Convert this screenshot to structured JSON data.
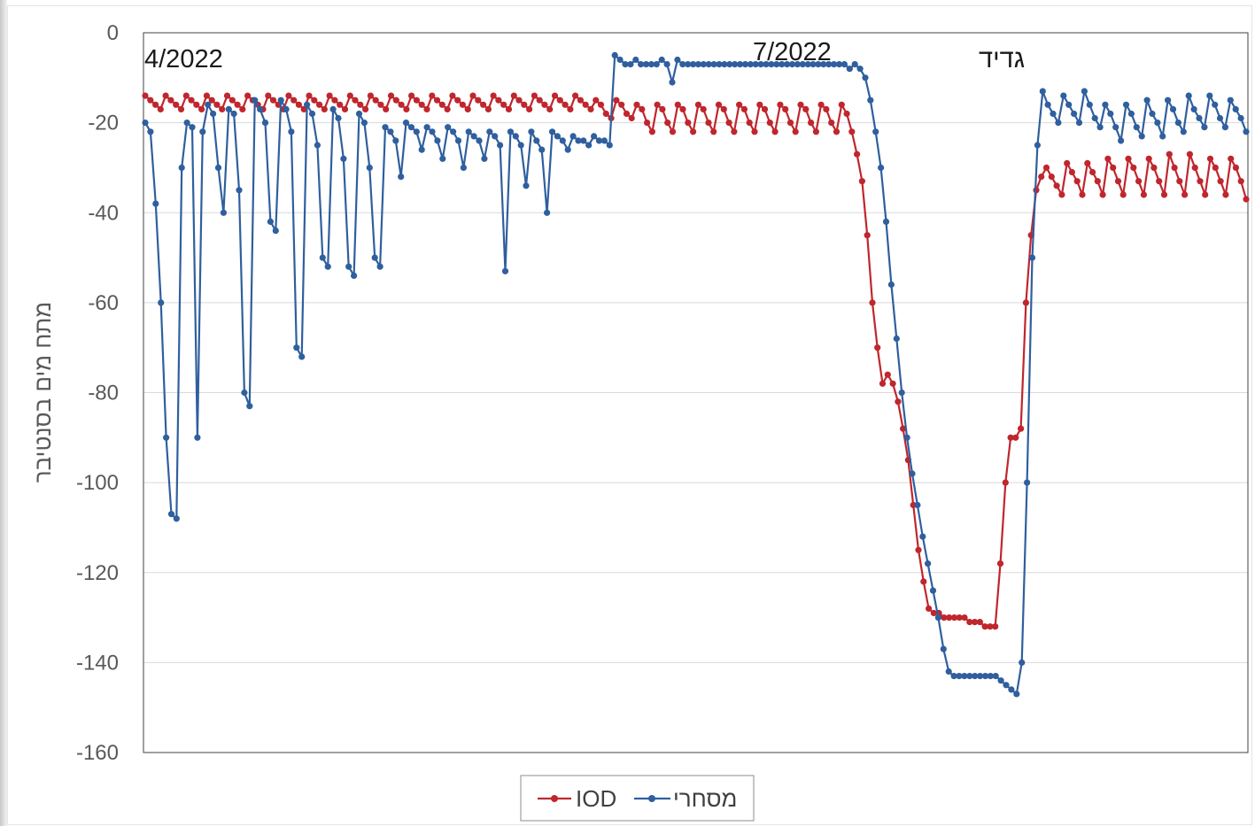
{
  "chart_data": {
    "type": "line",
    "title": "",
    "xlabel": "",
    "ylabel": "מתח מים בסנטיבר",
    "ylim": [
      -160,
      0
    ],
    "yticks": [
      0,
      -20,
      -40,
      -60,
      -80,
      -100,
      -120,
      -140,
      -160
    ],
    "grid": true,
    "legend_position": "bottom-center",
    "annotations": [
      "4/2022",
      "7/2022",
      "גדיד"
    ],
    "x_description": "measurement index (no x tick labels shown)",
    "series": [
      {
        "name": "IOD",
        "color": "#c0262d",
        "values": [
          -14,
          -15,
          -16,
          -17,
          -14,
          -15,
          -16,
          -17,
          -14,
          -15,
          -16,
          -17,
          -14,
          -15,
          -16,
          -17,
          -14,
          -15,
          -16,
          -17,
          -14,
          -15,
          -16,
          -17,
          -14,
          -15,
          -16,
          -17,
          -14,
          -15,
          -16,
          -17,
          -14,
          -15,
          -16,
          -17,
          -14,
          -15,
          -16,
          -17,
          -14,
          -15,
          -16,
          -17,
          -14,
          -15,
          -16,
          -17,
          -14,
          -15,
          -16,
          -17,
          -14,
          -15,
          -16,
          -17,
          -14,
          -15,
          -16,
          -17,
          -14,
          -15,
          -16,
          -17,
          -14,
          -15,
          -16,
          -17,
          -14,
          -15,
          -16,
          -17,
          -14,
          -15,
          -16,
          -17,
          -14,
          -15,
          -16,
          -17,
          -14,
          -15,
          -16,
          -17,
          -14,
          -15,
          -16,
          -17,
          -15,
          -16,
          -18,
          -19,
          -15,
          -16,
          -18,
          -19,
          -16,
          -17,
          -20,
          -22,
          -16,
          -17,
          -20,
          -22,
          -16,
          -17,
          -20,
          -22,
          -16,
          -17,
          -20,
          -22,
          -16,
          -17,
          -20,
          -22,
          -16,
          -17,
          -20,
          -22,
          -16,
          -17,
          -20,
          -22,
          -16,
          -17,
          -20,
          -22,
          -16,
          -17,
          -20,
          -22,
          -16,
          -17,
          -20,
          -22,
          -16,
          -18,
          -22,
          -27,
          -33,
          -45,
          -60,
          -70,
          -78,
          -76,
          -78,
          -82,
          -88,
          -95,
          -105,
          -115,
          -122,
          -128,
          -129,
          -129,
          -130,
          -130,
          -130,
          -130,
          -130,
          -131,
          -131,
          -131,
          -132,
          -132,
          -132,
          -118,
          -100,
          -90,
          -90,
          -88,
          -60,
          -45,
          -35,
          -32,
          -30,
          -32,
          -34,
          -36,
          -29,
          -31,
          -33,
          -36,
          -29,
          -31,
          -33,
          -36,
          -28,
          -30,
          -33,
          -36,
          -28,
          -30,
          -33,
          -36,
          -28,
          -30,
          -33,
          -36,
          -27,
          -30,
          -33,
          -36,
          -27,
          -30,
          -33,
          -36,
          -28,
          -30,
          -33,
          -36,
          -28,
          -30,
          -33,
          -37
        ]
      },
      {
        "name": "מסחרי",
        "color": "#2f5f9e",
        "values": [
          -20,
          -22,
          -38,
          -60,
          -90,
          -107,
          -108,
          -30,
          -20,
          -21,
          -90,
          -22,
          -16,
          -18,
          -30,
          -40,
          -17,
          -18,
          -35,
          -80,
          -83,
          -15,
          -17,
          -20,
          -42,
          -44,
          -15,
          -17,
          -22,
          -70,
          -72,
          -16,
          -18,
          -25,
          -50,
          -52,
          -17,
          -19,
          -28,
          -52,
          -54,
          -18,
          -20,
          -30,
          -50,
          -52,
          -21,
          -22,
          -24,
          -32,
          -20,
          -21,
          -22,
          -26,
          -21,
          -22,
          -24,
          -28,
          -21,
          -22,
          -24,
          -30,
          -22,
          -23,
          -24,
          -28,
          -22,
          -23,
          -25,
          -53,
          -22,
          -23,
          -25,
          -34,
          -22,
          -24,
          -26,
          -40,
          -22,
          -23,
          -24,
          -26,
          -23,
          -24,
          -24,
          -25,
          -23,
          -24,
          -24,
          -25,
          -5,
          -6,
          -7,
          -7,
          -6,
          -7,
          -7,
          -7,
          -7,
          -6,
          -7,
          -11,
          -6,
          -7,
          -7,
          -7,
          -7,
          -7,
          -7,
          -7,
          -7,
          -7,
          -7,
          -7,
          -7,
          -7,
          -7,
          -7,
          -7,
          -7,
          -7,
          -7,
          -7,
          -7,
          -7,
          -7,
          -7,
          -7,
          -7,
          -7,
          -7,
          -7,
          -7,
          -7,
          -7,
          -8,
          -7,
          -8,
          -10,
          -15,
          -22,
          -30,
          -42,
          -56,
          -68,
          -80,
          -90,
          -98,
          -105,
          -112,
          -118,
          -124,
          -130,
          -137,
          -142,
          -143,
          -143,
          -143,
          -143,
          -143,
          -143,
          -143,
          -143,
          -143,
          -144,
          -145,
          -146,
          -147,
          -140,
          -100,
          -50,
          -25,
          -13,
          -16,
          -18,
          -20,
          -14,
          -16,
          -18,
          -20,
          -13,
          -16,
          -19,
          -21,
          -16,
          -18,
          -21,
          -24,
          -16,
          -18,
          -21,
          -23,
          -15,
          -18,
          -20,
          -23,
          -15,
          -17,
          -20,
          -22,
          -14,
          -17,
          -19,
          -21,
          -14,
          -16,
          -19,
          -21,
          -15,
          -17,
          -19,
          -22
        ]
      }
    ]
  }
}
